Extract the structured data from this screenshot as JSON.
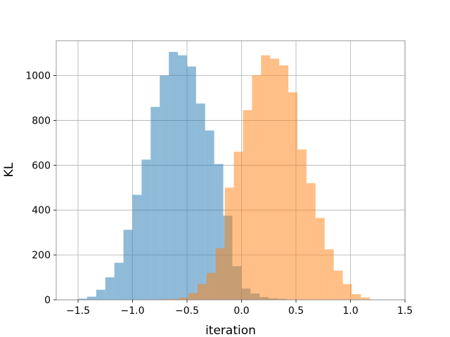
{
  "chart_data": {
    "type": "histogram",
    "title": "",
    "xlabel": "iteration",
    "ylabel": "KL",
    "xlim": [
      -1.7,
      1.5
    ],
    "ylim": [
      0,
      1155
    ],
    "grid": true,
    "bin_width": 0.0833,
    "x_ticks": [
      {
        "value": -1.5,
        "label": "−1.5"
      },
      {
        "value": -1.0,
        "label": "−1.0"
      },
      {
        "value": -0.5,
        "label": "−0.5"
      },
      {
        "value": 0.0,
        "label": "0.0"
      },
      {
        "value": 0.5,
        "label": "0.5"
      },
      {
        "value": 1.0,
        "label": "1.0"
      },
      {
        "value": 1.5,
        "label": "1.5"
      }
    ],
    "y_ticks": [
      {
        "value": 0,
        "label": "0"
      },
      {
        "value": 200,
        "label": "200"
      },
      {
        "value": 400,
        "label": "400"
      },
      {
        "value": 600,
        "label": "600"
      },
      {
        "value": 800,
        "label": "800"
      },
      {
        "value": 1000,
        "label": "1000"
      }
    ],
    "series": [
      {
        "color": "#1f77b4",
        "opacity": 0.5,
        "bin_start": -1.5,
        "counts": [
          5,
          14,
          45,
          100,
          165,
          312,
          468,
          625,
          860,
          1000,
          1105,
          1090,
          1040,
          875,
          755,
          605,
          375,
          150,
          50,
          28,
          12,
          6,
          4
        ]
      },
      {
        "color": "#ff7f0e",
        "opacity": 0.5,
        "bin_start": -0.82,
        "counts": [
          1,
          3,
          4,
          10,
          30,
          70,
          120,
          230,
          500,
          660,
          845,
          1000,
          1090,
          1075,
          1045,
          925,
          670,
          520,
          365,
          225,
          130,
          70,
          25,
          10
        ]
      }
    ]
  }
}
